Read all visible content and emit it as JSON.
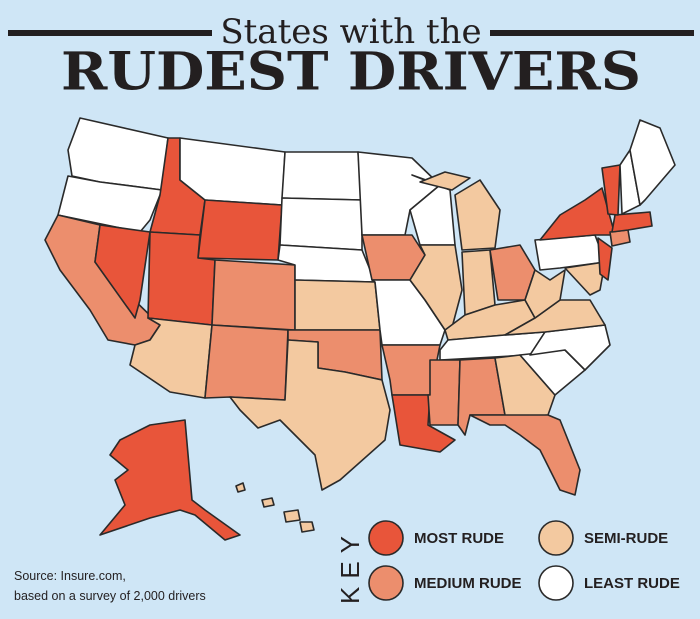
{
  "header": {
    "title_top": "States with the",
    "title_main": "RUDEST DRIVERS"
  },
  "key": {
    "label": "KEY",
    "items": [
      {
        "label": "MOST RUDE",
        "color": "#e8553a"
      },
      {
        "label": "MEDIUM RUDE",
        "color": "#ec8e6d"
      },
      {
        "label": "SEMI-RUDE",
        "color": "#f3c9a0"
      },
      {
        "label": "LEAST RUDE",
        "color": "#ffffff"
      }
    ]
  },
  "source": {
    "line1": "Source: Insure.com,",
    "line2": "based on a survey of 2,000 drivers"
  }
}
